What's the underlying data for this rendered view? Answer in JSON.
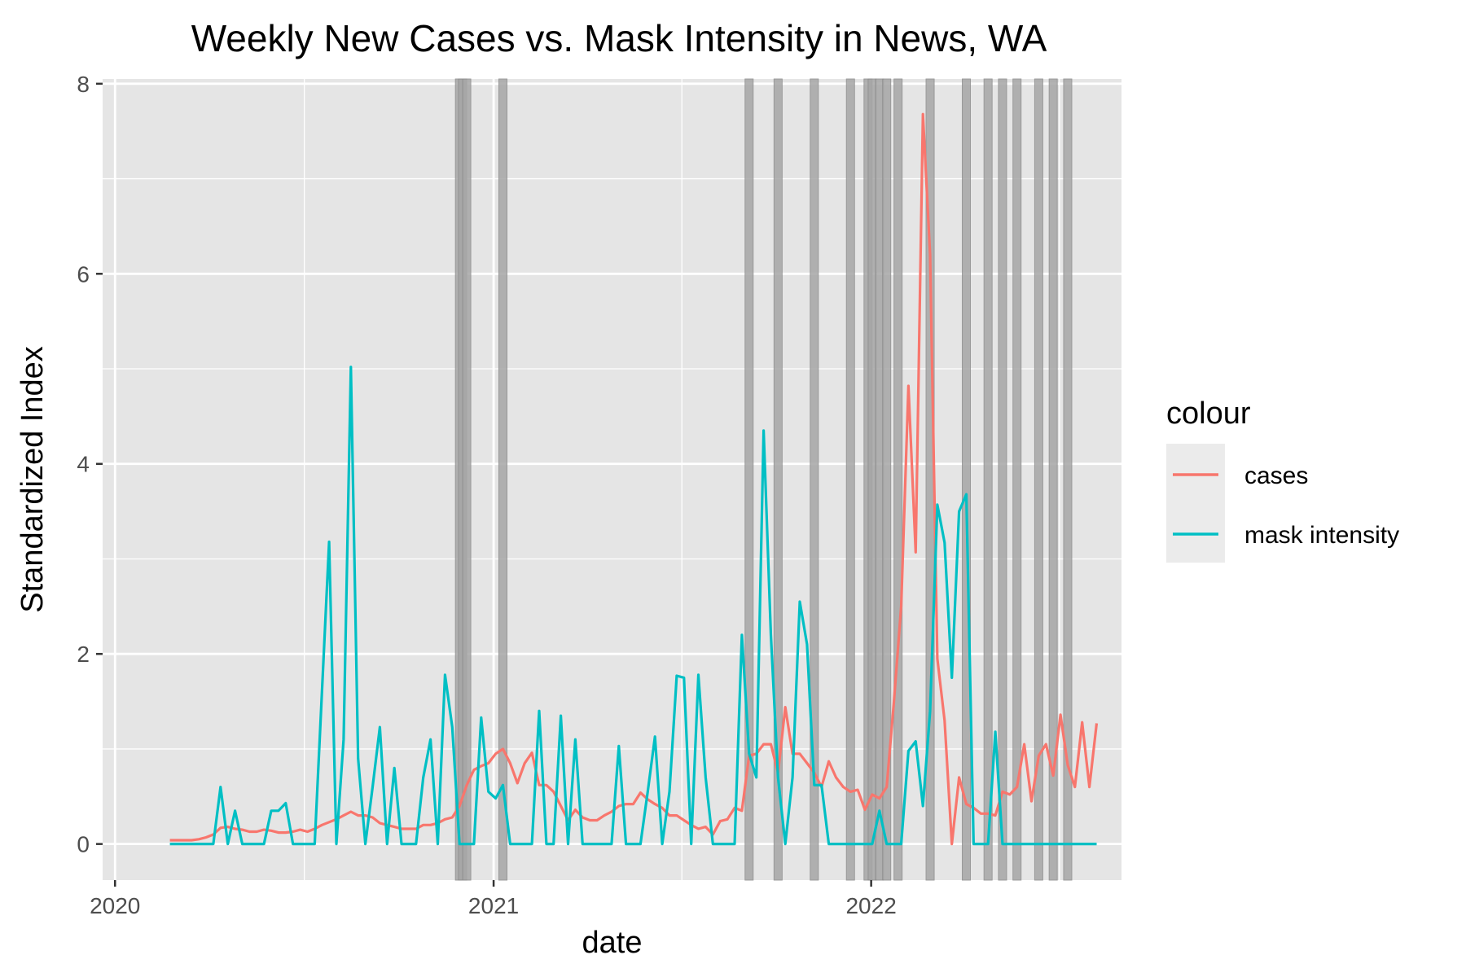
{
  "chart_data": {
    "type": "line",
    "title": "Weekly New Cases vs. Mask Intensity in News, WA",
    "xlabel": "date",
    "ylabel": "Standardized Index",
    "x_axis_type": "date",
    "xlim": [
      "2019-12-20",
      "2022-08-31"
    ],
    "ylim": [
      -0.38,
      8.05
    ],
    "x_ticks": [
      {
        "date": "2020-01-01",
        "label": "2020"
      },
      {
        "date": "2021-01-01",
        "label": "2021"
      },
      {
        "date": "2022-01-01",
        "label": "2022"
      }
    ],
    "y_ticks": [
      0,
      2,
      4,
      6,
      8
    ],
    "grid": true,
    "panel_background": "#e5e5e5",
    "grid_color": "#ffffff",
    "legend": {
      "title": "colour",
      "placement": "right",
      "entries": [
        {
          "label": "cases",
          "color": "#F8766D"
        },
        {
          "label": "mask intensity",
          "color": "#00BFC4"
        }
      ]
    },
    "series": [
      {
        "name": "cases",
        "color": "#F8766D",
        "points": [
          [
            "2020-02-23",
            0.04
          ],
          [
            "2020-03-01",
            0.04
          ],
          [
            "2020-03-08",
            0.04
          ],
          [
            "2020-03-15",
            0.04
          ],
          [
            "2020-03-22",
            0.05
          ],
          [
            "2020-03-29",
            0.07
          ],
          [
            "2020-04-05",
            0.1
          ],
          [
            "2020-04-12",
            0.17
          ],
          [
            "2020-04-19",
            0.18
          ],
          [
            "2020-04-26",
            0.16
          ],
          [
            "2020-05-03",
            0.15
          ],
          [
            "2020-05-10",
            0.13
          ],
          [
            "2020-05-17",
            0.13
          ],
          [
            "2020-05-24",
            0.15
          ],
          [
            "2020-05-31",
            0.14
          ],
          [
            "2020-06-07",
            0.12
          ],
          [
            "2020-06-14",
            0.12
          ],
          [
            "2020-06-21",
            0.13
          ],
          [
            "2020-06-28",
            0.15
          ],
          [
            "2020-07-05",
            0.13
          ],
          [
            "2020-07-12",
            0.16
          ],
          [
            "2020-07-19",
            0.2
          ],
          [
            "2020-07-26",
            0.23
          ],
          [
            "2020-08-02",
            0.26
          ],
          [
            "2020-08-09",
            0.3
          ],
          [
            "2020-08-16",
            0.34
          ],
          [
            "2020-08-23",
            0.3
          ],
          [
            "2020-08-30",
            0.3
          ],
          [
            "2020-09-06",
            0.28
          ],
          [
            "2020-09-13",
            0.22
          ],
          [
            "2020-09-20",
            0.2
          ],
          [
            "2020-09-27",
            0.18
          ],
          [
            "2020-10-04",
            0.16
          ],
          [
            "2020-10-11",
            0.16
          ],
          [
            "2020-10-18",
            0.16
          ],
          [
            "2020-10-25",
            0.2
          ],
          [
            "2020-11-01",
            0.2
          ],
          [
            "2020-11-08",
            0.22
          ],
          [
            "2020-11-15",
            0.26
          ],
          [
            "2020-11-22",
            0.28
          ],
          [
            "2020-11-29",
            0.4
          ],
          [
            "2020-12-06",
            0.62
          ],
          [
            "2020-12-13",
            0.78
          ],
          [
            "2020-12-20",
            0.82
          ],
          [
            "2020-12-27",
            0.85
          ],
          [
            "2021-01-03",
            0.95
          ],
          [
            "2021-01-10",
            1.0
          ],
          [
            "2021-01-17",
            0.85
          ],
          [
            "2021-01-24",
            0.64
          ],
          [
            "2021-01-31",
            0.85
          ],
          [
            "2021-02-07",
            0.96
          ],
          [
            "2021-02-14",
            0.62
          ],
          [
            "2021-02-21",
            0.62
          ],
          [
            "2021-02-28",
            0.55
          ],
          [
            "2021-03-07",
            0.4
          ],
          [
            "2021-03-14",
            0.25
          ],
          [
            "2021-03-21",
            0.36
          ],
          [
            "2021-03-28",
            0.28
          ],
          [
            "2021-04-04",
            0.25
          ],
          [
            "2021-04-11",
            0.25
          ],
          [
            "2021-04-18",
            0.3
          ],
          [
            "2021-04-25",
            0.34
          ],
          [
            "2021-05-02",
            0.4
          ],
          [
            "2021-05-09",
            0.42
          ],
          [
            "2021-05-16",
            0.42
          ],
          [
            "2021-05-23",
            0.54
          ],
          [
            "2021-05-30",
            0.47
          ],
          [
            "2021-06-06",
            0.42
          ],
          [
            "2021-06-13",
            0.38
          ],
          [
            "2021-06-20",
            0.3
          ],
          [
            "2021-06-27",
            0.3
          ],
          [
            "2021-07-04",
            0.25
          ],
          [
            "2021-07-11",
            0.2
          ],
          [
            "2021-07-18",
            0.16
          ],
          [
            "2021-07-25",
            0.18
          ],
          [
            "2021-08-01",
            0.1
          ],
          [
            "2021-08-08",
            0.24
          ],
          [
            "2021-08-15",
            0.26
          ],
          [
            "2021-08-22",
            0.38
          ],
          [
            "2021-08-29",
            0.35
          ],
          [
            "2021-09-05",
            0.93
          ],
          [
            "2021-09-12",
            0.95
          ],
          [
            "2021-09-19",
            1.05
          ],
          [
            "2021-09-26",
            1.05
          ],
          [
            "2021-10-03",
            0.75
          ],
          [
            "2021-10-10",
            1.44
          ],
          [
            "2021-10-17",
            0.95
          ],
          [
            "2021-10-24",
            0.95
          ],
          [
            "2021-10-31",
            0.85
          ],
          [
            "2021-11-07",
            0.75
          ],
          [
            "2021-11-14",
            0.6
          ],
          [
            "2021-11-21",
            0.87
          ],
          [
            "2021-11-28",
            0.7
          ],
          [
            "2021-12-05",
            0.6
          ],
          [
            "2021-12-12",
            0.55
          ],
          [
            "2021-12-19",
            0.57
          ],
          [
            "2021-12-26",
            0.36
          ],
          [
            "2022-01-02",
            0.52
          ],
          [
            "2022-01-09",
            0.48
          ],
          [
            "2022-01-16",
            0.6
          ],
          [
            "2022-01-23",
            1.5
          ],
          [
            "2022-01-30",
            2.5
          ],
          [
            "2022-02-06",
            4.82
          ],
          [
            "2022-02-13",
            3.07
          ],
          [
            "2022-02-20",
            7.68
          ],
          [
            "2022-02-27",
            6.2
          ],
          [
            "2022-03-06",
            1.95
          ],
          [
            "2022-03-13",
            1.3
          ],
          [
            "2022-03-20",
            0.0
          ],
          [
            "2022-03-27",
            0.7
          ],
          [
            "2022-04-03",
            0.42
          ],
          [
            "2022-04-10",
            0.38
          ],
          [
            "2022-04-17",
            0.32
          ],
          [
            "2022-04-24",
            0.32
          ],
          [
            "2022-05-01",
            0.3
          ],
          [
            "2022-05-08",
            0.55
          ],
          [
            "2022-05-15",
            0.52
          ],
          [
            "2022-05-22",
            0.6
          ],
          [
            "2022-05-29",
            1.05
          ],
          [
            "2022-06-05",
            0.45
          ],
          [
            "2022-06-12",
            0.93
          ],
          [
            "2022-06-19",
            1.05
          ],
          [
            "2022-06-26",
            0.72
          ],
          [
            "2022-07-03",
            1.36
          ],
          [
            "2022-07-10",
            0.83
          ],
          [
            "2022-07-17",
            0.6
          ],
          [
            "2022-07-24",
            1.28
          ],
          [
            "2022-07-31",
            0.6
          ],
          [
            "2022-08-07",
            1.27
          ]
        ]
      },
      {
        "name": "mask intensity",
        "color": "#00BFC4",
        "points": [
          [
            "2020-02-23",
            0
          ],
          [
            "2020-03-01",
            0
          ],
          [
            "2020-03-08",
            0
          ],
          [
            "2020-03-15",
            0
          ],
          [
            "2020-03-22",
            0
          ],
          [
            "2020-03-29",
            0
          ],
          [
            "2020-04-05",
            0
          ],
          [
            "2020-04-12",
            0.6
          ],
          [
            "2020-04-19",
            0
          ],
          [
            "2020-04-26",
            0.35
          ],
          [
            "2020-05-03",
            0
          ],
          [
            "2020-05-10",
            0
          ],
          [
            "2020-05-17",
            0
          ],
          [
            "2020-05-24",
            0
          ],
          [
            "2020-05-31",
            0.35
          ],
          [
            "2020-06-07",
            0.35
          ],
          [
            "2020-06-14",
            0.43
          ],
          [
            "2020-06-21",
            0
          ],
          [
            "2020-06-28",
            0
          ],
          [
            "2020-07-05",
            0
          ],
          [
            "2020-07-12",
            0
          ],
          [
            "2020-07-19",
            1.6
          ],
          [
            "2020-07-26",
            3.18
          ],
          [
            "2020-08-02",
            0
          ],
          [
            "2020-08-09",
            1.1
          ],
          [
            "2020-08-16",
            5.02
          ],
          [
            "2020-08-23",
            0.9
          ],
          [
            "2020-08-30",
            0
          ],
          [
            "2020-09-06",
            0.6
          ],
          [
            "2020-09-13",
            1.23
          ],
          [
            "2020-09-20",
            0
          ],
          [
            "2020-09-27",
            0.8
          ],
          [
            "2020-10-04",
            0
          ],
          [
            "2020-10-11",
            0
          ],
          [
            "2020-10-18",
            0
          ],
          [
            "2020-10-25",
            0.7
          ],
          [
            "2020-11-01",
            1.1
          ],
          [
            "2020-11-08",
            0
          ],
          [
            "2020-11-15",
            1.78
          ],
          [
            "2020-11-22",
            1.23
          ],
          [
            "2020-11-29",
            0
          ],
          [
            "2020-12-06",
            0
          ],
          [
            "2020-12-13",
            0
          ],
          [
            "2020-12-20",
            1.33
          ],
          [
            "2020-12-27",
            0.55
          ],
          [
            "2021-01-03",
            0.48
          ],
          [
            "2021-01-10",
            0.62
          ],
          [
            "2021-01-17",
            0
          ],
          [
            "2021-01-24",
            0
          ],
          [
            "2021-01-31",
            0
          ],
          [
            "2021-02-07",
            0
          ],
          [
            "2021-02-14",
            1.4
          ],
          [
            "2021-02-21",
            0
          ],
          [
            "2021-02-28",
            0
          ],
          [
            "2021-03-07",
            1.35
          ],
          [
            "2021-03-14",
            0
          ],
          [
            "2021-03-21",
            1.1
          ],
          [
            "2021-03-28",
            0
          ],
          [
            "2021-04-04",
            0
          ],
          [
            "2021-04-11",
            0
          ],
          [
            "2021-04-18",
            0
          ],
          [
            "2021-04-25",
            0
          ],
          [
            "2021-05-02",
            1.03
          ],
          [
            "2021-05-09",
            0
          ],
          [
            "2021-05-16",
            0
          ],
          [
            "2021-05-23",
            0
          ],
          [
            "2021-05-30",
            0.55
          ],
          [
            "2021-06-06",
            1.13
          ],
          [
            "2021-06-13",
            0
          ],
          [
            "2021-06-20",
            0.55
          ],
          [
            "2021-06-27",
            1.77
          ],
          [
            "2021-07-04",
            1.75
          ],
          [
            "2021-07-11",
            0
          ],
          [
            "2021-07-18",
            1.78
          ],
          [
            "2021-07-25",
            0.7
          ],
          [
            "2021-08-01",
            0
          ],
          [
            "2021-08-08",
            0
          ],
          [
            "2021-08-15",
            0
          ],
          [
            "2021-08-22",
            0
          ],
          [
            "2021-08-29",
            2.2
          ],
          [
            "2021-09-05",
            0.95
          ],
          [
            "2021-09-12",
            0.7
          ],
          [
            "2021-09-19",
            4.35
          ],
          [
            "2021-09-26",
            2.2
          ],
          [
            "2021-10-03",
            0.7
          ],
          [
            "2021-10-10",
            0
          ],
          [
            "2021-10-17",
            0.7
          ],
          [
            "2021-10-24",
            2.55
          ],
          [
            "2021-10-31",
            2.1
          ],
          [
            "2021-11-07",
            0.62
          ],
          [
            "2021-11-14",
            0.62
          ],
          [
            "2021-11-21",
            0
          ],
          [
            "2021-11-28",
            0
          ],
          [
            "2021-12-05",
            0
          ],
          [
            "2021-12-12",
            0
          ],
          [
            "2021-12-19",
            0
          ],
          [
            "2021-12-26",
            0
          ],
          [
            "2022-01-02",
            0
          ],
          [
            "2022-01-09",
            0.35
          ],
          [
            "2022-01-16",
            0
          ],
          [
            "2022-01-23",
            0
          ],
          [
            "2022-01-30",
            0
          ],
          [
            "2022-02-06",
            0.98
          ],
          [
            "2022-02-13",
            1.08
          ],
          [
            "2022-02-20",
            0.4
          ],
          [
            "2022-02-27",
            1.4
          ],
          [
            "2022-03-06",
            3.57
          ],
          [
            "2022-03-13",
            3.17
          ],
          [
            "2022-03-20",
            1.75
          ],
          [
            "2022-03-27",
            3.5
          ],
          [
            "2022-04-03",
            3.68
          ],
          [
            "2022-04-10",
            0
          ],
          [
            "2022-04-17",
            0
          ],
          [
            "2022-04-24",
            0
          ],
          [
            "2022-05-01",
            1.18
          ],
          [
            "2022-05-08",
            0
          ],
          [
            "2022-05-15",
            0
          ],
          [
            "2022-05-22",
            0
          ],
          [
            "2022-05-29",
            0
          ],
          [
            "2022-06-05",
            0
          ],
          [
            "2022-06-12",
            0
          ],
          [
            "2022-06-19",
            0
          ],
          [
            "2022-06-26",
            0
          ],
          [
            "2022-07-03",
            0
          ],
          [
            "2022-07-10",
            0
          ],
          [
            "2022-07-17",
            0
          ],
          [
            "2022-07-24",
            0
          ],
          [
            "2022-07-31",
            0
          ],
          [
            "2022-08-07",
            0
          ]
        ]
      }
    ],
    "vertical_markers": {
      "color": "#a6a6a6",
      "dates": [
        "2020-11-29",
        "2020-12-02",
        "2020-12-06",
        "2021-01-10",
        "2021-09-05",
        "2021-10-03",
        "2021-11-07",
        "2021-12-12",
        "2021-12-29",
        "2022-01-02",
        "2022-01-09",
        "2022-01-16",
        "2022-01-27",
        "2022-02-27",
        "2022-04-03",
        "2022-04-24",
        "2022-05-08",
        "2022-05-22",
        "2022-06-12",
        "2022-06-26",
        "2022-07-10"
      ]
    }
  }
}
